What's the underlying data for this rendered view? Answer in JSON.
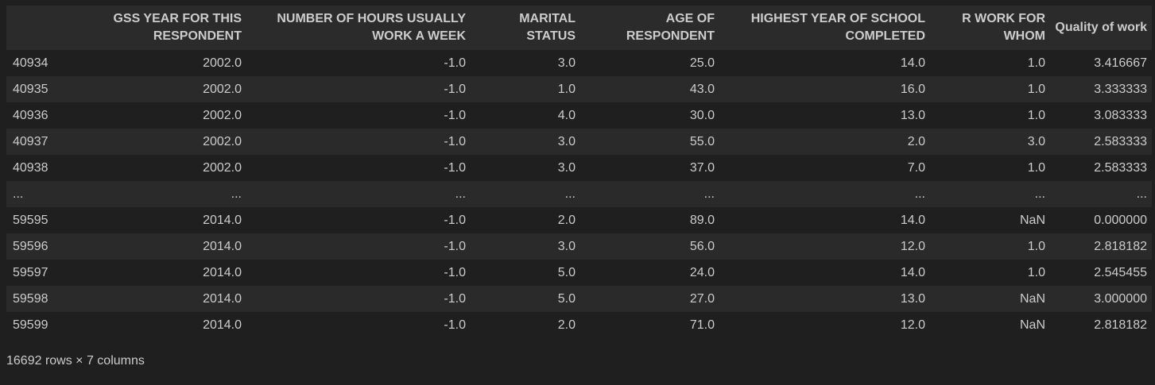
{
  "table": {
    "index_header": "",
    "columns": [
      "GSS YEAR FOR THIS RESPONDENT",
      "NUMBER OF HOURS USUALLY WORK A WEEK",
      "MARITAL STATUS",
      "AGE OF RESPONDENT",
      "HIGHEST YEAR OF SCHOOL COMPLETED",
      "R WORK FOR WHOM",
      "Quality of work"
    ],
    "rows": [
      {
        "index": "40934",
        "cells": [
          "2002.0",
          "-1.0",
          "3.0",
          "25.0",
          "14.0",
          "1.0",
          "3.416667"
        ]
      },
      {
        "index": "40935",
        "cells": [
          "2002.0",
          "-1.0",
          "1.0",
          "43.0",
          "16.0",
          "1.0",
          "3.333333"
        ]
      },
      {
        "index": "40936",
        "cells": [
          "2002.0",
          "-1.0",
          "4.0",
          "30.0",
          "13.0",
          "1.0",
          "3.083333"
        ]
      },
      {
        "index": "40937",
        "cells": [
          "2002.0",
          "-1.0",
          "3.0",
          "55.0",
          "2.0",
          "3.0",
          "2.583333"
        ]
      },
      {
        "index": "40938",
        "cells": [
          "2002.0",
          "-1.0",
          "3.0",
          "37.0",
          "7.0",
          "1.0",
          "2.583333"
        ]
      },
      {
        "index": "...",
        "cells": [
          "...",
          "...",
          "...",
          "...",
          "...",
          "...",
          "..."
        ]
      },
      {
        "index": "59595",
        "cells": [
          "2014.0",
          "-1.0",
          "2.0",
          "89.0",
          "14.0",
          "NaN",
          "0.000000"
        ]
      },
      {
        "index": "59596",
        "cells": [
          "2014.0",
          "-1.0",
          "3.0",
          "56.0",
          "12.0",
          "1.0",
          "2.818182"
        ]
      },
      {
        "index": "59597",
        "cells": [
          "2014.0",
          "-1.0",
          "5.0",
          "24.0",
          "14.0",
          "1.0",
          "2.545455"
        ]
      },
      {
        "index": "59598",
        "cells": [
          "2014.0",
          "-1.0",
          "5.0",
          "27.0",
          "13.0",
          "NaN",
          "3.000000"
        ]
      },
      {
        "index": "59599",
        "cells": [
          "2014.0",
          "-1.0",
          "2.0",
          "71.0",
          "12.0",
          "NaN",
          "2.818182"
        ]
      }
    ]
  },
  "footer": "16692 rows × 7 columns"
}
